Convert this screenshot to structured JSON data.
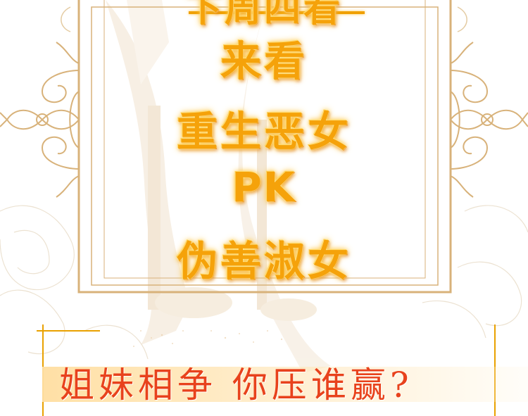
{
  "lines": {
    "cut_top": "下周四看",
    "l1": "来看",
    "l2": "重生恶女",
    "l3": "PK",
    "l4": "伪善淑女"
  },
  "banner": {
    "text": "姐妹相争  你压谁赢?"
  },
  "colors": {
    "gold_text": "#f5a20a",
    "frame_gold": "#d8b27a",
    "banner_red": "#e8421c"
  }
}
